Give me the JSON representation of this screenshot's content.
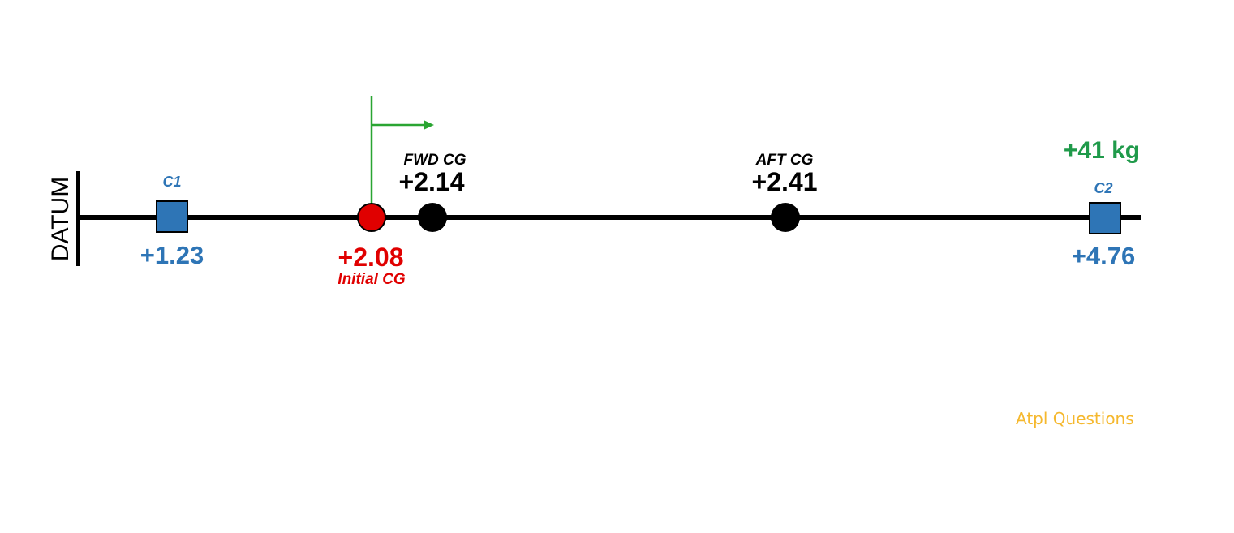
{
  "datum_label": "DATUM",
  "compartments": [
    {
      "name": "C1",
      "arm": "+1.23"
    },
    {
      "name": "C2",
      "arm": "+4.76"
    }
  ],
  "limits": {
    "fwd": {
      "label": "FWD CG",
      "value": "+2.14"
    },
    "aft": {
      "label": "AFT CG",
      "value": "+2.41"
    }
  },
  "initial_cg": {
    "value": "+2.08",
    "label": "Initial CG"
  },
  "mass_change": "+41 kg",
  "colors": {
    "compartment": "#2e75b6",
    "initial_cg": "#e00000",
    "shift_arrow": "#2aa532",
    "mass_change": "#1f9a4a",
    "limits": "#000000",
    "watermark": "#f5b82e"
  },
  "watermark": "Atpl Questions"
}
